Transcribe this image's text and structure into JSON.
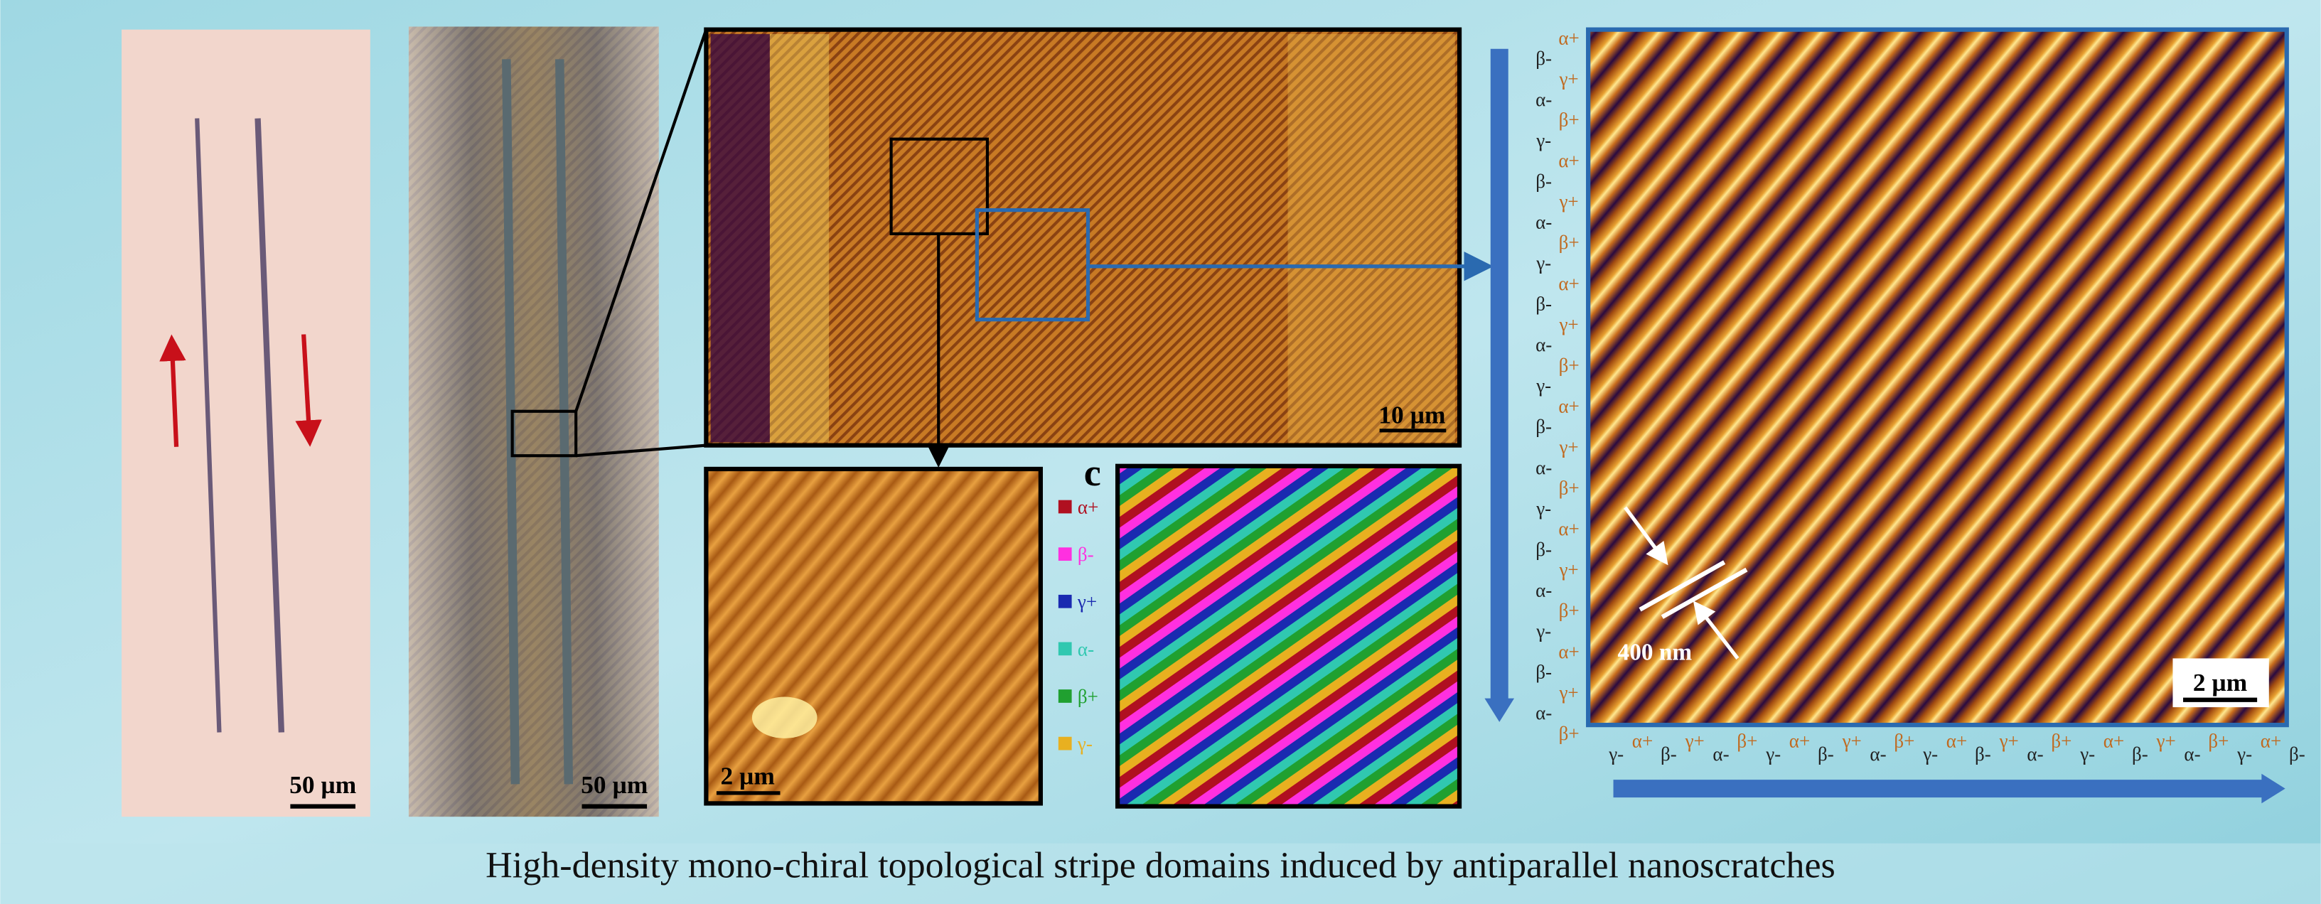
{
  "panels": {
    "optical": {
      "scale_label": "50 µm"
    },
    "polarized": {
      "scale_label": "50 µm"
    },
    "afm_large": {
      "scale_label": "10 µm"
    },
    "afm_zoom": {
      "scale_label": "2 µm"
    },
    "domain_map": {
      "panel_letter": "c",
      "legend": [
        "α+",
        "β-",
        "γ+",
        "α-",
        "β+",
        "γ-"
      ]
    },
    "afm_detail": {
      "scale_label": "2 µm",
      "period_label": "400 nm",
      "vertical_labels": [
        "α+",
        "β-",
        "γ+",
        "α-",
        "β+",
        "γ-",
        "α+",
        "β-",
        "γ+",
        "α-",
        "β+",
        "γ-",
        "α+",
        "β-",
        "γ+",
        "α-",
        "β+",
        "γ-",
        "α+",
        "β-",
        "γ+",
        "α-",
        "β+",
        "γ-",
        "α+",
        "β-",
        "γ+",
        "α-",
        "β+",
        "γ-",
        "α+",
        "β-",
        "γ+",
        "α-",
        "β+"
      ],
      "horizontal_labels": [
        "γ-",
        "α+",
        "β-",
        "γ+",
        "α-",
        "β+",
        "γ-",
        "α+",
        "β-",
        "γ+",
        "α-",
        "β+",
        "γ-",
        "α+",
        "β-",
        "γ+",
        "α-",
        "β+",
        "γ-",
        "α+",
        "β-",
        "γ+",
        "α-",
        "β+",
        "γ-",
        "α+",
        "β-"
      ]
    }
  },
  "caption": "High-density mono-chiral topological stripe domains induced by antiparallel nanoscratches"
}
